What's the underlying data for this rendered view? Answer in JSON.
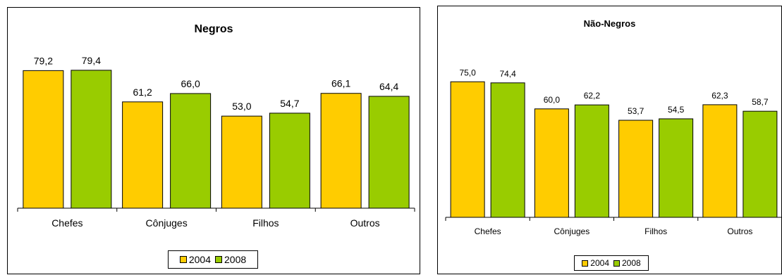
{
  "chart_data": [
    {
      "type": "bar",
      "title": "Negros",
      "categories": [
        "Chefes",
        "Cônjuges",
        "Filhos",
        "Outros"
      ],
      "series": [
        {
          "name": "2004",
          "values": [
            79.2,
            61.2,
            53.0,
            66.1
          ],
          "labels": [
            "79,2",
            "61,2",
            "53,0",
            "66,1"
          ],
          "color": "#FFCC00"
        },
        {
          "name": "2008",
          "values": [
            79.4,
            66.0,
            54.7,
            64.4
          ],
          "labels": [
            "79,4",
            "66,0",
            "54,7",
            "64,4"
          ],
          "color": "#99CC00"
        }
      ],
      "ylim": [
        0,
        100
      ],
      "grid": false,
      "legend_position": "bottom"
    },
    {
      "type": "bar",
      "title": "Não-Negros",
      "categories": [
        "Chefes",
        "Cônjuges",
        "Filhos",
        "Outros"
      ],
      "series": [
        {
          "name": "2004",
          "values": [
            75.0,
            60.0,
            53.7,
            62.3
          ],
          "labels": [
            "75,0",
            "60,0",
            "53,7",
            "62,3"
          ],
          "color": "#FFCC00"
        },
        {
          "name": "2008",
          "values": [
            74.4,
            62.2,
            54.5,
            58.7
          ],
          "labels": [
            "74,4",
            "62,2",
            "54,5",
            "58,7"
          ],
          "color": "#99CC00"
        }
      ],
      "ylim": [
        0,
        100
      ],
      "grid": false,
      "legend_position": "bottom"
    }
  ]
}
